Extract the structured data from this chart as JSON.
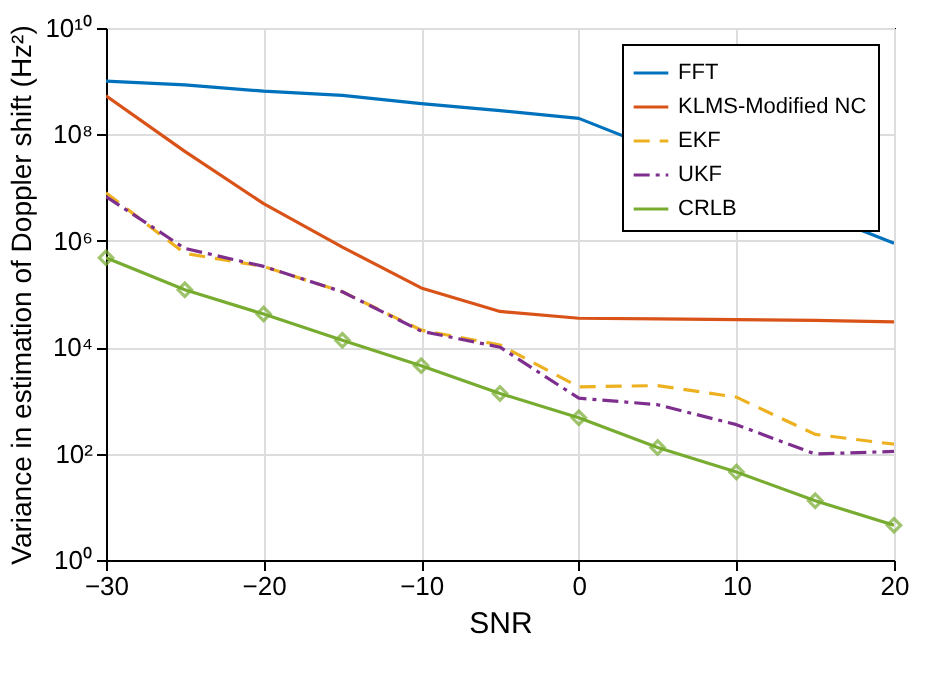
{
  "chart_data": {
    "type": "line",
    "xlabel": "SNR",
    "ylabel": "Variance in estimation of Doppler shift (Hz²)",
    "x": [
      -30,
      -25,
      -20,
      -15,
      -10,
      -5,
      0,
      5,
      10,
      15,
      20
    ],
    "xlim": [
      -30,
      20
    ],
    "xticks": [
      -30,
      -20,
      -10,
      0,
      10,
      20
    ],
    "ylim": [
      1,
      10000000000
    ],
    "log": true,
    "yticks": [
      {
        "value": 1,
        "label": "10⁰"
      },
      {
        "value": 100,
        "label": "10²"
      },
      {
        "value": 10000,
        "label": "10⁴"
      },
      {
        "value": 1000000,
        "label": "10⁶"
      },
      {
        "value": 100000000,
        "label": "10⁸"
      },
      {
        "value": 10000000000,
        "label": "10¹⁰"
      }
    ],
    "grid": true,
    "legend": "top right",
    "series": [
      {
        "name": "FFT",
        "color": "#0072bd",
        "line_style": "solid",
        "marker": "none",
        "values": [
          1000000000,
          850000000,
          650000000,
          540000000,
          380000000,
          280000000,
          200000000,
          null,
          null,
          null,
          900000
        ]
      },
      {
        "name": "KLMS-Modified NC",
        "color": "#d95319",
        "line_style": "solid",
        "marker": "none",
        "values": [
          530000000,
          48000000,
          5000000,
          760000,
          130000,
          47000,
          35000,
          34000,
          33000,
          32000,
          30000
        ]
      },
      {
        "name": "EKF",
        "color": "#edb120",
        "line_style": "dashed",
        "marker": "none",
        "values": [
          8000000,
          580000,
          330000,
          110000,
          21000,
          11000,
          1800,
          1900,
          1150,
          230,
          150
        ]
      },
      {
        "name": "UKF",
        "color": "#7e2f8e",
        "line_style": "dashdot",
        "marker": "none",
        "values": [
          6800000,
          720000,
          330000,
          110000,
          20000,
          10000,
          1100,
          830,
          350,
          98,
          110
        ]
      },
      {
        "name": "CRLB",
        "color": "#77ac30",
        "line_style": "solid",
        "marker": "diamond",
        "values": [
          480000,
          120000,
          42000,
          13500,
          4500,
          1350,
          470,
          130,
          45,
          13,
          4.5
        ]
      }
    ]
  }
}
